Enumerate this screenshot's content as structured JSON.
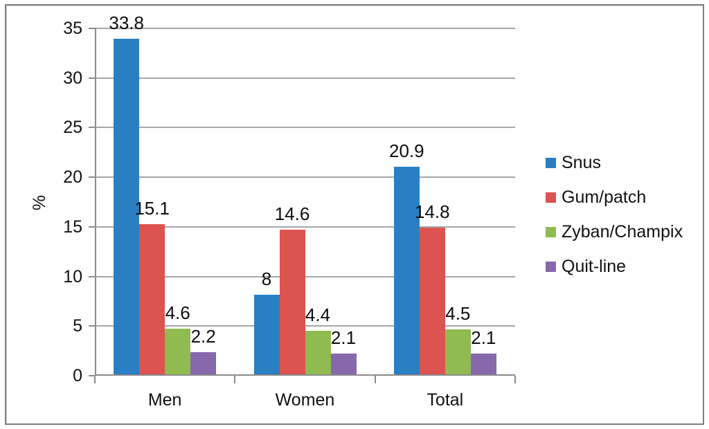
{
  "chart_data": {
    "type": "bar",
    "title": "",
    "xlabel": "",
    "ylabel": "%",
    "ylim": [
      0,
      35
    ],
    "ytick_step": 5,
    "yticks": [
      0,
      5,
      10,
      15,
      20,
      25,
      30,
      35
    ],
    "grid": true,
    "legend_position": "right",
    "categories": [
      "Men",
      "Women",
      "Total"
    ],
    "series": [
      {
        "name": "Snus",
        "color": "#2a7fc2",
        "values": [
          33.8,
          8,
          20.9
        ]
      },
      {
        "name": "Gum/patch",
        "color": "#dc5350",
        "values": [
          15.1,
          14.6,
          14.8
        ]
      },
      {
        "name": "Zyban/Champix",
        "color": "#8fbb51",
        "values": [
          4.6,
          4.4,
          4.5
        ]
      },
      {
        "name": "Quit-line",
        "color": "#8768ab",
        "values": [
          2.2,
          2.1,
          2.1
        ]
      }
    ]
  },
  "colors": {
    "gridline": "#a6a6a6",
    "axis": "#8a8a8a",
    "frame": "#7e7e7e",
    "text": "#111111",
    "background": "#ffffff"
  }
}
